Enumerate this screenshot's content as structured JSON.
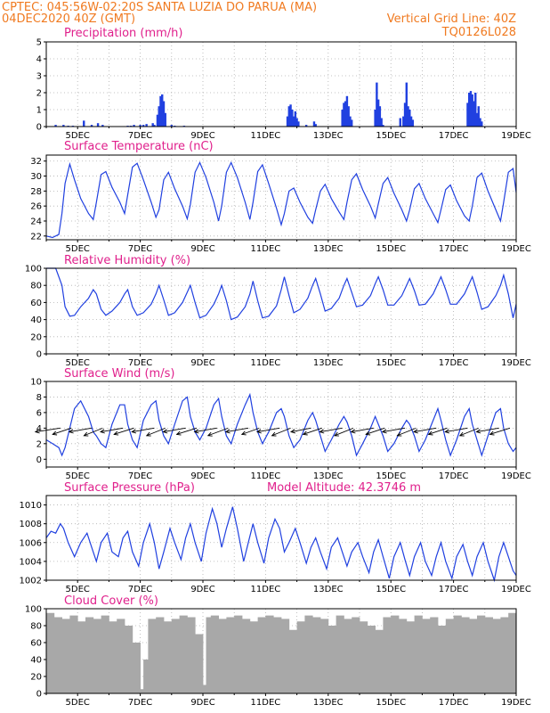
{
  "header": {
    "left_line1": "CPTEC:   045:56W-02:20S   SANTA LUZIA DO PARUA (MA)",
    "left_line2": "04DEC2020 40Z (GMT)",
    "right_line1": "Vertical Grid Line: 40Z",
    "right_line2": "TQ0126L028"
  },
  "colors": {
    "header": "#f07a20",
    "title": "#e0208c",
    "line": "#2040e0",
    "cloud": "#a8a8a8",
    "grid": "#b0b0b0"
  },
  "chart_data": [
    {
      "id": "precipitation",
      "type": "bar",
      "title": "Precipitation (mm/h)",
      "xlabel": "",
      "ylabel": "",
      "ylim": [
        0,
        5
      ],
      "yticks": [
        0,
        1,
        2,
        3,
        4,
        5
      ],
      "xlim": [
        4,
        19
      ],
      "x_ticks": [
        5,
        7,
        9,
        11,
        13,
        15,
        17,
        19
      ],
      "x_tick_labels": [
        "5DEC",
        "7DEC",
        "9DEC",
        "11DEC",
        "13DEC",
        "15DEC",
        "17DEC",
        "19DEC"
      ],
      "grid": true,
      "x": [
        4.3,
        4.55,
        4.7,
        4.85,
        5.2,
        5.45,
        5.65,
        5.8,
        6.6,
        6.7,
        6.8,
        7.0,
        7.1,
        7.2,
        7.4,
        7.45,
        7.55,
        7.6,
        7.65,
        7.7,
        7.75,
        7.8,
        8.0,
        8.1,
        8.4,
        11.7,
        11.75,
        11.8,
        11.85,
        11.9,
        11.95,
        12.0,
        12.05,
        12.3,
        12.55,
        12.6,
        13.45,
        13.5,
        13.55,
        13.6,
        13.65,
        13.7,
        13.75,
        14.5,
        14.55,
        14.6,
        14.65,
        14.7,
        14.75,
        15.3,
        15.4,
        15.45,
        15.5,
        15.55,
        15.6,
        15.65,
        15.7,
        17.45,
        17.5,
        17.55,
        17.6,
        17.65,
        17.7,
        17.75,
        17.8,
        17.85,
        17.9
      ],
      "values": [
        0.1,
        0.1,
        0.05,
        0.05,
        0.35,
        0.1,
        0.2,
        0.1,
        0.05,
        0.05,
        0.1,
        0.1,
        0.1,
        0.15,
        0.2,
        0.1,
        0.7,
        1.2,
        1.8,
        1.9,
        1.5,
        0.8,
        0.1,
        0.05,
        0.05,
        0.6,
        1.2,
        1.3,
        1.0,
        0.6,
        0.9,
        0.5,
        0.3,
        0.1,
        0.3,
        0.15,
        1.0,
        1.4,
        1.5,
        1.8,
        1.2,
        0.6,
        0.4,
        1.0,
        2.6,
        1.6,
        1.2,
        0.5,
        0.1,
        0.5,
        0.6,
        1.4,
        2.6,
        1.2,
        1.0,
        0.6,
        0.4,
        1.4,
        2.0,
        2.1,
        1.9,
        1.5,
        2.0,
        0.8,
        1.2,
        0.5,
        0.3
      ]
    },
    {
      "id": "temperature",
      "type": "line",
      "title": "Surface Temperature (nC)",
      "ylim": [
        21.5,
        32.8
      ],
      "yticks": [
        22,
        24,
        26,
        28,
        30,
        32
      ],
      "xlim": [
        4,
        19
      ],
      "x_ticks": [
        5,
        7,
        9,
        11,
        13,
        15,
        17,
        19
      ],
      "x_tick_labels": [
        "5DEC",
        "7DEC",
        "9DEC",
        "11DEC",
        "13DEC",
        "15DEC",
        "17DEC",
        "19DEC"
      ],
      "grid": true,
      "x": [
        4.0,
        4.2,
        4.4,
        4.5,
        4.6,
        4.75,
        4.9,
        5.1,
        5.35,
        5.5,
        5.6,
        5.75,
        5.9,
        6.1,
        6.35,
        6.5,
        6.6,
        6.75,
        6.9,
        7.1,
        7.35,
        7.5,
        7.6,
        7.75,
        7.9,
        8.1,
        8.35,
        8.5,
        8.6,
        8.75,
        8.9,
        9.1,
        9.35,
        9.5,
        9.6,
        9.75,
        9.9,
        10.1,
        10.35,
        10.5,
        10.6,
        10.75,
        10.9,
        11.1,
        11.35,
        11.5,
        11.6,
        11.75,
        11.9,
        12.1,
        12.35,
        12.5,
        12.6,
        12.75,
        12.9,
        13.1,
        13.35,
        13.5,
        13.6,
        13.75,
        13.9,
        14.1,
        14.35,
        14.5,
        14.6,
        14.75,
        14.9,
        15.1,
        15.35,
        15.5,
        15.6,
        15.75,
        15.9,
        16.1,
        16.35,
        16.5,
        16.6,
        16.75,
        16.9,
        17.1,
        17.35,
        17.5,
        17.6,
        17.75,
        17.9,
        18.1,
        18.35,
        18.5,
        18.6,
        18.75,
        18.9,
        19.0
      ],
      "values": [
        22.0,
        21.8,
        22.2,
        25.0,
        29.0,
        31.6,
        29.5,
        27.0,
        25.0,
        24.2,
        26.5,
        30.2,
        30.6,
        28.5,
        26.5,
        25.0,
        27.5,
        31.2,
        31.7,
        29.5,
        26.5,
        24.5,
        25.5,
        29.5,
        30.5,
        28.3,
        26.0,
        24.3,
        26.2,
        30.5,
        31.8,
        29.8,
        26.5,
        24.0,
        26.0,
        30.5,
        31.8,
        29.8,
        26.5,
        24.2,
        26.5,
        30.6,
        31.5,
        29.0,
        25.7,
        23.5,
        25.0,
        28.0,
        28.4,
        26.5,
        24.5,
        23.7,
        25.5,
        28.0,
        28.9,
        27.0,
        25.2,
        24.2,
        26.5,
        29.5,
        30.3,
        28.2,
        26.0,
        24.4,
        26.3,
        29.0,
        29.8,
        27.7,
        25.5,
        24.0,
        25.5,
        28.3,
        29.0,
        27.0,
        25.0,
        23.8,
        25.5,
        28.2,
        28.8,
        26.7,
        24.7,
        24.0,
        26.0,
        29.8,
        30.4,
        28.0,
        25.5,
        24.0,
        26.5,
        30.5,
        31.0,
        27.8
      ]
    },
    {
      "id": "humidity",
      "type": "line",
      "title": "Relative Humidity (%)",
      "ylim": [
        0,
        100
      ],
      "yticks": [
        0,
        20,
        40,
        60,
        80,
        100
      ],
      "xlim": [
        4,
        19
      ],
      "x_ticks": [
        5,
        7,
        9,
        11,
        13,
        15,
        17,
        19
      ],
      "x_tick_labels": [
        "5DEC",
        "7DEC",
        "9DEC",
        "11DEC",
        "13DEC",
        "15DEC",
        "17DEC",
        "19DEC"
      ],
      "grid": true,
      "x": [
        4.0,
        4.3,
        4.5,
        4.6,
        4.75,
        4.9,
        5.1,
        5.35,
        5.5,
        5.6,
        5.75,
        5.9,
        6.1,
        6.35,
        6.5,
        6.6,
        6.75,
        6.9,
        7.1,
        7.35,
        7.5,
        7.6,
        7.75,
        7.9,
        8.1,
        8.35,
        8.5,
        8.6,
        8.75,
        8.9,
        9.1,
        9.35,
        9.5,
        9.6,
        9.75,
        9.9,
        10.1,
        10.35,
        10.5,
        10.6,
        10.75,
        10.9,
        11.1,
        11.35,
        11.5,
        11.6,
        11.75,
        11.9,
        12.1,
        12.35,
        12.5,
        12.6,
        12.75,
        12.9,
        13.1,
        13.35,
        13.5,
        13.6,
        13.75,
        13.9,
        14.1,
        14.35,
        14.5,
        14.6,
        14.75,
        14.9,
        15.1,
        15.35,
        15.5,
        15.6,
        15.75,
        15.9,
        16.1,
        16.35,
        16.5,
        16.6,
        16.75,
        16.9,
        17.1,
        17.35,
        17.5,
        17.6,
        17.75,
        17.9,
        18.1,
        18.35,
        18.5,
        18.6,
        18.75,
        18.9,
        19.0
      ],
      "values": [
        100,
        100,
        80,
        55,
        44,
        45,
        55,
        65,
        75,
        70,
        52,
        45,
        50,
        60,
        70,
        75,
        55,
        45,
        48,
        58,
        70,
        80,
        63,
        45,
        48,
        60,
        72,
        80,
        60,
        42,
        45,
        58,
        70,
        80,
        62,
        40,
        43,
        55,
        70,
        85,
        62,
        42,
        44,
        56,
        75,
        90,
        68,
        48,
        52,
        65,
        80,
        88,
        70,
        50,
        53,
        65,
        80,
        88,
        72,
        55,
        57,
        68,
        82,
        90,
        75,
        57,
        57,
        68,
        80,
        88,
        74,
        57,
        58,
        70,
        82,
        90,
        75,
        58,
        58,
        70,
        82,
        90,
        72,
        52,
        55,
        68,
        80,
        92,
        70,
        42,
        58
      ]
    },
    {
      "id": "wind",
      "type": "line",
      "title": "Surface Wind (m/s)",
      "ylim": [
        -1,
        10
      ],
      "yticks": [
        0,
        2,
        4,
        6,
        8,
        10
      ],
      "xlim": [
        4,
        19
      ],
      "x_ticks": [
        5,
        7,
        9,
        11,
        13,
        15,
        17,
        19
      ],
      "x_tick_labels": [
        "5DEC",
        "7DEC",
        "9DEC",
        "11DEC",
        "13DEC",
        "15DEC",
        "17DEC",
        "19DEC"
      ],
      "grid": true,
      "x": [
        4.0,
        4.2,
        4.4,
        4.5,
        4.6,
        4.75,
        4.9,
        5.1,
        5.35,
        5.5,
        5.6,
        5.75,
        5.9,
        6.1,
        6.35,
        6.5,
        6.6,
        6.75,
        6.9,
        7.1,
        7.35,
        7.5,
        7.6,
        7.75,
        7.9,
        8.1,
        8.35,
        8.5,
        8.6,
        8.75,
        8.9,
        9.1,
        9.35,
        9.5,
        9.6,
        9.75,
        9.9,
        10.1,
        10.35,
        10.5,
        10.6,
        10.75,
        10.9,
        11.1,
        11.35,
        11.5,
        11.6,
        11.75,
        11.9,
        12.1,
        12.35,
        12.5,
        12.6,
        12.75,
        12.9,
        13.1,
        13.35,
        13.5,
        13.6,
        13.75,
        13.9,
        14.1,
        14.35,
        14.5,
        14.6,
        14.75,
        14.9,
        15.1,
        15.35,
        15.5,
        15.6,
        15.75,
        15.9,
        16.1,
        16.35,
        16.5,
        16.6,
        16.75,
        16.9,
        17.1,
        17.35,
        17.5,
        17.6,
        17.75,
        17.9,
        18.1,
        18.35,
        18.5,
        18.6,
        18.75,
        18.9,
        19.0
      ],
      "values": [
        2.5,
        2.0,
        1.5,
        0.5,
        1.5,
        4.0,
        6.5,
        7.5,
        5.5,
        3.5,
        3.0,
        2.0,
        1.5,
        4.5,
        7.0,
        7.0,
        4.5,
        2.5,
        1.5,
        5.0,
        7.0,
        7.5,
        5.0,
        3.0,
        2.0,
        4.5,
        7.5,
        8.0,
        5.5,
        3.5,
        2.5,
        4.0,
        7.0,
        7.8,
        5.5,
        3.0,
        2.0,
        4.5,
        7.0,
        8.3,
        6.0,
        3.5,
        2.0,
        3.5,
        6.0,
        6.5,
        5.5,
        3.0,
        1.5,
        2.5,
        5.0,
        6.0,
        5.0,
        3.0,
        1.0,
        2.5,
        4.5,
        5.5,
        4.8,
        3.0,
        0.5,
        2.0,
        4.0,
        5.5,
        4.5,
        3.0,
        1.0,
        2.0,
        4.0,
        5.0,
        4.5,
        3.0,
        1.0,
        2.5,
        5.0,
        6.5,
        5.0,
        2.5,
        0.5,
        2.5,
        5.5,
        6.5,
        4.5,
        2.5,
        0.5,
        3.0,
        6.0,
        6.5,
        4.0,
        2.0,
        1.0,
        1.5
      ],
      "vectors_x": [
        4.45,
        4.8,
        5.45,
        5.8,
        6.45,
        6.8,
        7.45,
        7.8,
        8.45,
        8.8,
        9.45,
        9.8,
        10.45,
        10.8,
        11.45,
        11.8,
        12.45,
        12.8,
        13.45,
        13.8,
        14.45,
        14.8,
        15.45,
        15.8,
        16.45,
        16.8,
        17.45,
        17.8,
        18.45,
        18.8
      ],
      "vectors_u": [
        -2.0,
        -1.5,
        -1.8,
        -1.5,
        -1.8,
        -1.6,
        -1.8,
        -1.5,
        -1.8,
        -1.6,
        -1.8,
        -1.6,
        -1.8,
        -1.4,
        -1.8,
        -1.5,
        -1.6,
        -1.5,
        -1.8,
        -1.5,
        -1.8,
        -1.5,
        -1.8,
        -1.5,
        -1.8,
        -1.5,
        -1.8,
        -1.5,
        -1.8,
        -1.6
      ],
      "vectors_v": [
        -0.3,
        -0.5,
        -0.3,
        -0.6,
        -0.3,
        -0.5,
        -0.3,
        -0.6,
        -0.3,
        -0.5,
        -0.3,
        -0.6,
        -0.3,
        -0.5,
        -0.3,
        -0.6,
        -0.3,
        -0.5,
        -0.3,
        -0.6,
        -0.3,
        -0.5,
        -0.3,
        -0.6,
        -0.3,
        -0.5,
        -0.3,
        -0.6,
        -0.3,
        -0.5
      ]
    },
    {
      "id": "pressure",
      "type": "line",
      "title": "Surface Pressure (hPa)",
      "annotation": "Model Altitude: 42.3746 m",
      "ylim": [
        1002,
        1011
      ],
      "yticks": [
        1002,
        1004,
        1006,
        1008,
        1010
      ],
      "xlim": [
        4,
        19
      ],
      "x_ticks": [
        5,
        7,
        9,
        11,
        13,
        15,
        17,
        19
      ],
      "x_tick_labels": [
        "5DEC",
        "7DEC",
        "9DEC",
        "11DEC",
        "13DEC",
        "15DEC",
        "17DEC",
        "19DEC"
      ],
      "grid": true,
      "x": [
        4.0,
        4.15,
        4.3,
        4.45,
        4.55,
        4.7,
        4.9,
        5.1,
        5.3,
        5.45,
        5.6,
        5.75,
        5.95,
        6.1,
        6.3,
        6.45,
        6.6,
        6.75,
        6.95,
        7.1,
        7.3,
        7.45,
        7.6,
        7.75,
        7.95,
        8.1,
        8.3,
        8.45,
        8.6,
        8.75,
        8.95,
        9.1,
        9.3,
        9.45,
        9.6,
        9.75,
        9.95,
        10.1,
        10.3,
        10.45,
        10.6,
        10.75,
        10.95,
        11.1,
        11.3,
        11.45,
        11.6,
        11.75,
        11.95,
        12.1,
        12.3,
        12.45,
        12.6,
        12.75,
        12.95,
        13.1,
        13.3,
        13.45,
        13.6,
        13.75,
        13.95,
        14.1,
        14.3,
        14.45,
        14.6,
        14.75,
        14.95,
        15.1,
        15.3,
        15.45,
        15.6,
        15.75,
        15.95,
        16.1,
        16.3,
        16.45,
        16.6,
        16.75,
        16.95,
        17.1,
        17.3,
        17.45,
        17.6,
        17.75,
        17.95,
        18.1,
        18.3,
        18.45,
        18.6,
        18.75,
        18.9,
        19.0
      ],
      "values": [
        1006.5,
        1007.2,
        1007.0,
        1008.0,
        1007.5,
        1006.0,
        1004.5,
        1006.0,
        1007.0,
        1005.5,
        1004.0,
        1006.0,
        1007.0,
        1005.0,
        1004.5,
        1006.5,
        1007.2,
        1005.0,
        1003.5,
        1006.0,
        1008.0,
        1006.0,
        1003.2,
        1005.0,
        1007.5,
        1006.0,
        1004.2,
        1006.5,
        1008.0,
        1006.0,
        1004.0,
        1007.0,
        1009.6,
        1008.0,
        1005.5,
        1007.5,
        1009.8,
        1007.5,
        1004.0,
        1006.0,
        1008.0,
        1006.0,
        1003.8,
        1006.5,
        1008.5,
        1007.5,
        1005.0,
        1006.0,
        1007.5,
        1006.0,
        1003.8,
        1005.5,
        1006.5,
        1005.0,
        1003.2,
        1005.5,
        1006.5,
        1005.0,
        1003.5,
        1005.0,
        1006.0,
        1004.5,
        1002.8,
        1005.0,
        1006.3,
        1004.5,
        1002.2,
        1004.5,
        1006.0,
        1004.2,
        1002.5,
        1004.5,
        1006.0,
        1004.0,
        1002.5,
        1004.5,
        1006.0,
        1004.0,
        1002.2,
        1004.5,
        1005.8,
        1004.0,
        1002.5,
        1004.5,
        1006.0,
        1004.0,
        1002.0,
        1004.5,
        1006.0,
        1004.5,
        1003.0,
        1002.5
      ]
    },
    {
      "id": "cloud",
      "type": "bar",
      "title": "Cloud Cover (%)",
      "ylim": [
        0,
        100
      ],
      "yticks": [
        0,
        20,
        40,
        60,
        80,
        100
      ],
      "xlim": [
        4,
        19
      ],
      "x_ticks": [
        5,
        7,
        9,
        11,
        13,
        15,
        17,
        19
      ],
      "x_tick_labels": [
        "5DEC",
        "7DEC",
        "9DEC",
        "11DEC",
        "13DEC",
        "15DEC",
        "17DEC",
        "19DEC"
      ],
      "grid": true,
      "x": [
        4.0,
        4.25,
        4.5,
        4.75,
        5.0,
        5.25,
        5.5,
        5.75,
        6.0,
        6.25,
        6.5,
        6.75,
        6.9,
        7.0,
        7.1,
        7.25,
        7.5,
        7.75,
        8.0,
        8.25,
        8.5,
        8.75,
        8.9,
        9.0,
        9.1,
        9.25,
        9.5,
        9.75,
        10.0,
        10.25,
        10.5,
        10.75,
        11.0,
        11.25,
        11.5,
        11.75,
        12.0,
        12.25,
        12.5,
        12.75,
        13.0,
        13.25,
        13.5,
        13.75,
        14.0,
        14.25,
        14.5,
        14.75,
        15.0,
        15.25,
        15.5,
        15.75,
        16.0,
        16.25,
        16.5,
        16.75,
        17.0,
        17.25,
        17.5,
        17.75,
        18.0,
        18.25,
        18.5,
        18.75
      ],
      "values": [
        95,
        90,
        88,
        92,
        85,
        90,
        88,
        92,
        85,
        88,
        80,
        60,
        5,
        3,
        40,
        88,
        90,
        85,
        88,
        92,
        90,
        70,
        2,
        10,
        90,
        92,
        88,
        90,
        92,
        88,
        85,
        90,
        92,
        90,
        88,
        75,
        85,
        92,
        90,
        88,
        80,
        92,
        88,
        90,
        85,
        80,
        75,
        90,
        92,
        88,
        85,
        92,
        88,
        90,
        80,
        88,
        92,
        90,
        88,
        92,
        90,
        88,
        90,
        95
      ]
    }
  ]
}
